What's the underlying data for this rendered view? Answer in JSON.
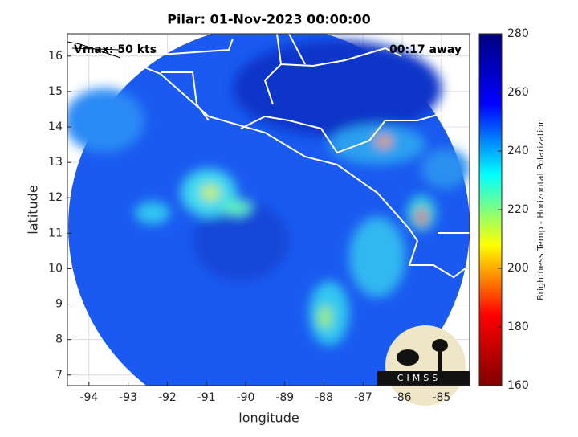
{
  "title": "Pilar: 01-Nov-2023 00:00:00",
  "annotations": {
    "left": "Vmax: 50 kts",
    "right": "00:17 away"
  },
  "logo": "CIMSS",
  "x_axis": {
    "label": "longitude",
    "lim": [
      -94.55,
      -84.28
    ],
    "ticks": [
      -94,
      -93,
      -92,
      -91,
      -90,
      -89,
      -88,
      -87,
      -86,
      -85
    ]
  },
  "y_axis": {
    "label": "latitude",
    "lim": [
      6.7,
      16.63
    ],
    "ticks": [
      7,
      8,
      9,
      10,
      11,
      12,
      13,
      14,
      15,
      16
    ]
  },
  "colorbar": {
    "label": "Brightness Temp - Horizontal Polarization",
    "lim": [
      160,
      280
    ],
    "ticks": [
      160,
      180,
      200,
      220,
      240,
      260,
      280
    ],
    "colormap": [
      "#7f0000",
      "#ff0000",
      "#ffff00",
      "#00ffff",
      "#0000ff",
      "#00007f"
    ]
  }
}
